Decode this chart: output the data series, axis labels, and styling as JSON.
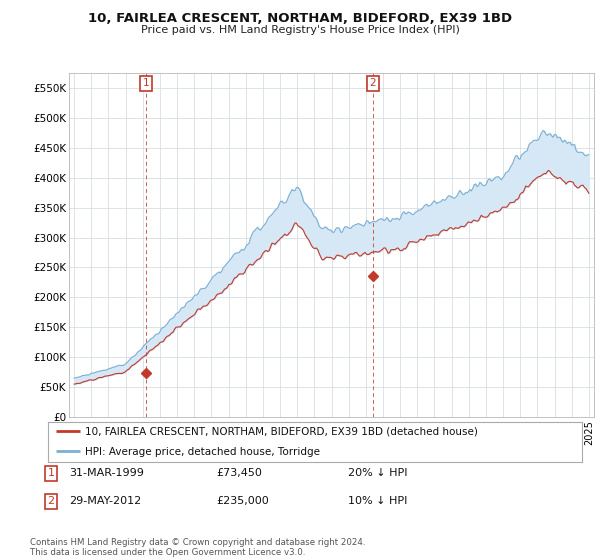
{
  "title": "10, FAIRLEA CRESCENT, NORTHAM, BIDEFORD, EX39 1BD",
  "subtitle": "Price paid vs. HM Land Registry's House Price Index (HPI)",
  "ylim": [
    0,
    575000
  ],
  "yticks": [
    0,
    50000,
    100000,
    150000,
    200000,
    250000,
    300000,
    350000,
    400000,
    450000,
    500000,
    550000
  ],
  "ytick_labels": [
    "£0",
    "£50K",
    "£100K",
    "£150K",
    "£200K",
    "£250K",
    "£300K",
    "£350K",
    "£400K",
    "£450K",
    "£500K",
    "£550K"
  ],
  "hpi_color": "#7bafd4",
  "hpi_fill_color": "#d6e8f5",
  "price_color": "#c0392b",
  "grid_color": "#d0d8e0",
  "background_color": "#ffffff",
  "sale1_date": 1999.21,
  "sale1_price": 73450,
  "sale1_label": "1",
  "sale2_date": 2012.41,
  "sale2_price": 235000,
  "sale2_label": "2",
  "legend_line1": "10, FAIRLEA CRESCENT, NORTHAM, BIDEFORD, EX39 1BD (detached house)",
  "legend_line2": "HPI: Average price, detached house, Torridge",
  "footer1": "Contains HM Land Registry data © Crown copyright and database right 2024.",
  "footer2": "This data is licensed under the Open Government Licence v3.0.",
  "table_row1": [
    "1",
    "31-MAR-1999",
    "£73,450",
    "20% ↓ HPI"
  ],
  "table_row2": [
    "2",
    "29-MAY-2012",
    "£235,000",
    "10% ↓ HPI"
  ],
  "xlim_left": 1994.7,
  "xlim_right": 2025.3
}
